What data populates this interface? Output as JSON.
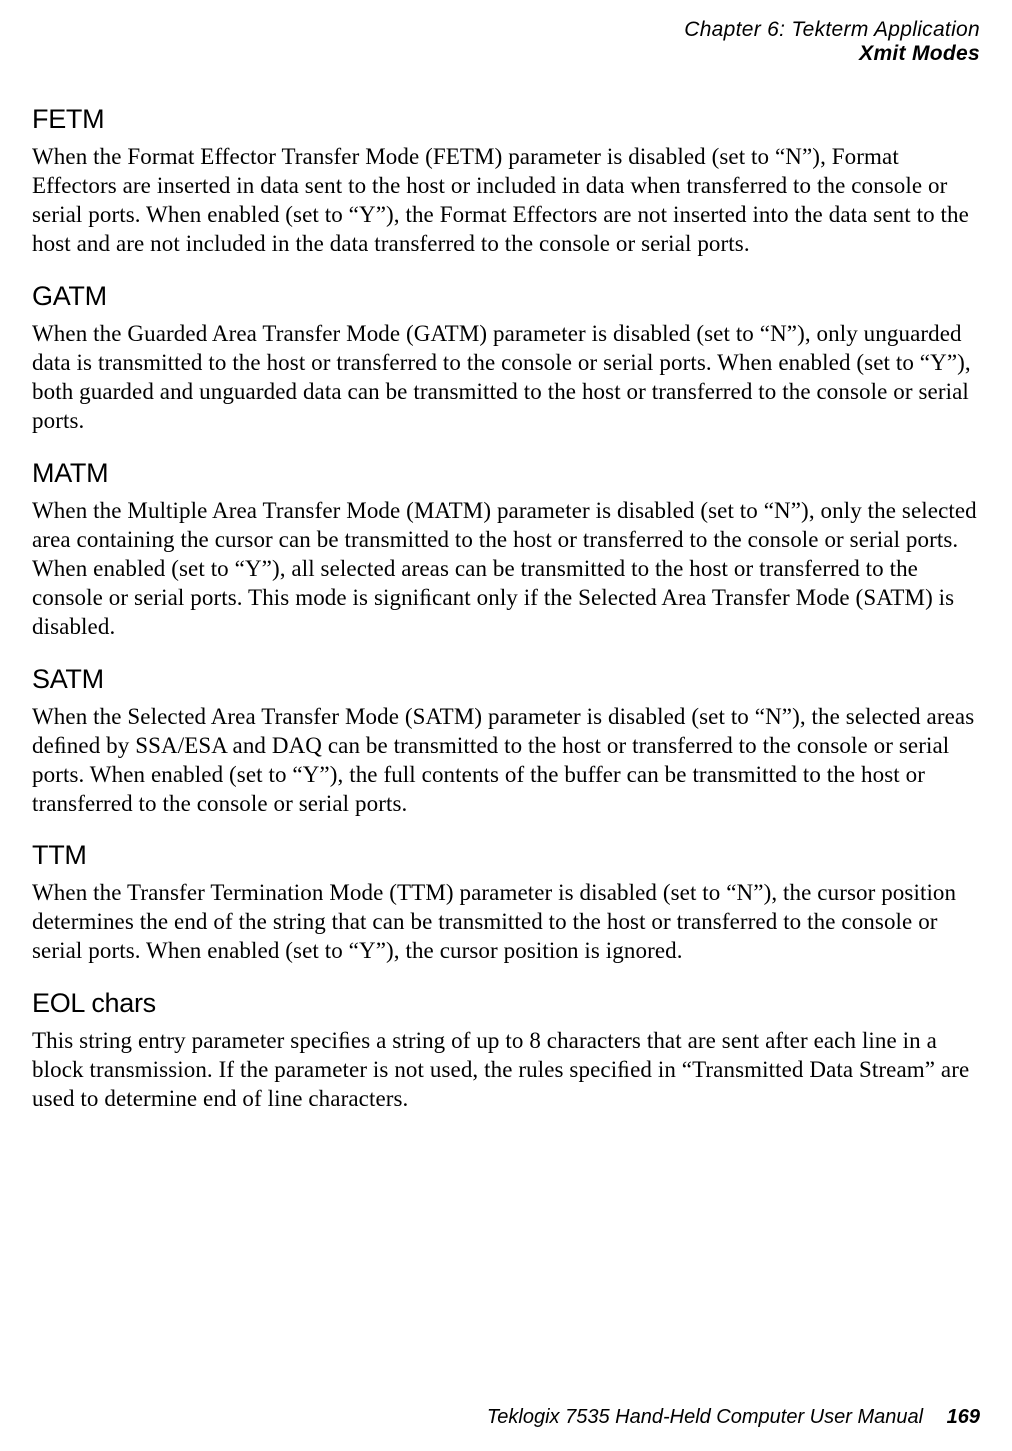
{
  "header": {
    "chapter_line": "Chapter 6: Tekterm Application",
    "section_line": "Xmit Modes"
  },
  "sections": [
    {
      "heading": "FETM",
      "body": "When the Format Effector Transfer Mode (FETM) parameter is disabled (set to “N”), Format Effectors are inserted in data sent to the host or included in data when transferred to the console or serial ports. When enabled (set to “Y”), the Format Effectors are not inserted into the data sent to the host and are not included in the data transferred to the console or serial ports."
    },
    {
      "heading": "GATM",
      "body": "When the Guarded Area Transfer Mode (GATM) parameter is disabled (set to “N”), only unguarded data is transmitted to the host or transferred to the console or serial ports. When enabled (set to “Y”), both guarded and unguarded data can be transmitted to the host or transferred to the console or serial ports."
    },
    {
      "heading": "MATM",
      "body": "When the Multiple Area Transfer Mode (MATM) parameter is disabled (set to “N”), only the selected area containing the cursor can be transmitted to the host or transferred to the console or serial ports. When enabled (set to “Y”), all selected areas can be transmitted to the host or transferred to the console or serial ports. This mode is signiﬁcant only if the Selected Area Transfer Mode (SATM) is disabled."
    },
    {
      "heading": "SATM",
      "body": "When the Selected Area Transfer Mode (SATM) parameter is disabled (set to “N”), the selected areas deﬁned by SSA/ESA and DAQ can be transmitted to the host or transferred to the console or serial ports. When enabled (set to “Y”), the full contents of the buffer can be transmitted to the host or transferred to the console or serial ports."
    },
    {
      "heading": "TTM",
      "body": "When the Transfer Termination Mode (TTM) parameter is disabled (set to “N”), the cursor position determines the end of the string that can be transmitted to the host or transferred to the console or serial ports. When enabled (set to “Y”), the cursor position is ignored."
    },
    {
      "heading": "EOL chars",
      "body": "This string entry parameter speciﬁes a string of up to 8 characters that are sent after each line in a block transmission. If the parameter is not used, the rules speciﬁed in “Transmitted Data Stream” are used to determine end of line characters."
    }
  ],
  "footer": {
    "title": "Teklogix 7535 Hand-Held Computer User Manual",
    "page": "169"
  }
}
